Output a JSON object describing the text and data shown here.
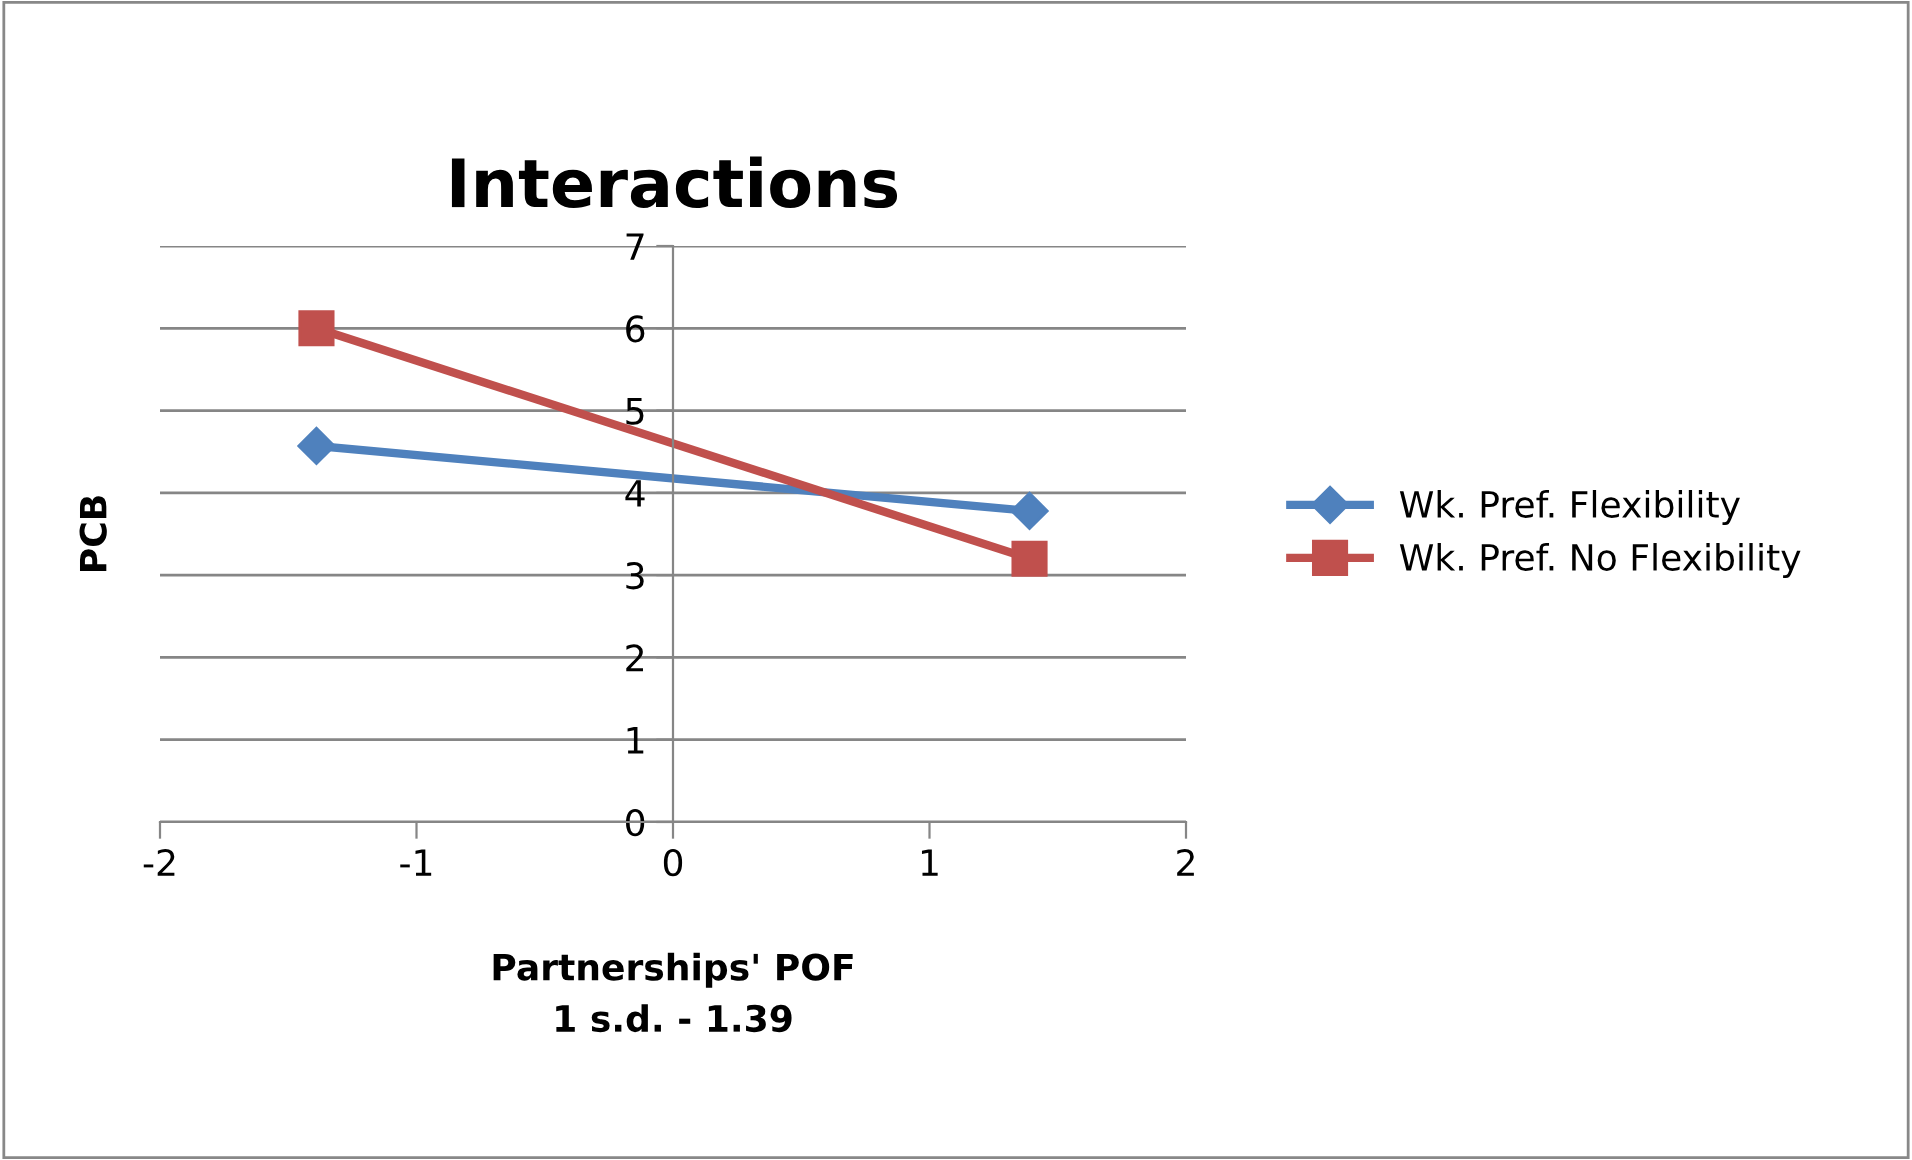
{
  "chart_data": {
    "type": "line",
    "title": "Interactions",
    "xlabel": "Partnerships' POF\n1 s.d. - 1.39",
    "ylabel": "PCB",
    "x": [
      -1.39,
      1.39
    ],
    "xlim": [
      -2,
      2
    ],
    "xticks": [
      -2,
      -1,
      0,
      1,
      2
    ],
    "ylim": [
      0,
      7
    ],
    "yticks": [
      0,
      1,
      2,
      3,
      4,
      5,
      6,
      7
    ],
    "grid": "y",
    "legend": "right",
    "series": [
      {
        "name": "Wk. Pref. Flexibility",
        "color": "#4f81bd",
        "marker": "diamond",
        "values": [
          4.57,
          3.78
        ]
      },
      {
        "name": "Wk. Pref. No Flexibility",
        "color": "#c0504d",
        "marker": "square",
        "values": [
          6.0,
          3.2
        ]
      }
    ]
  }
}
